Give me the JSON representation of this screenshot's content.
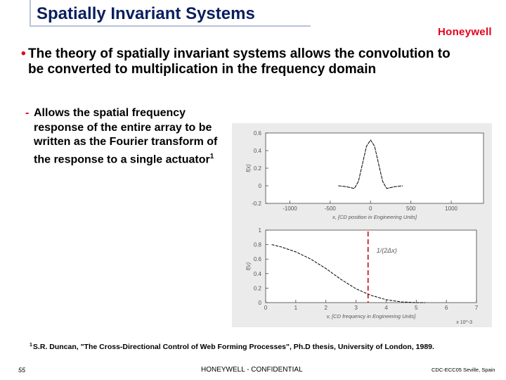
{
  "slide": {
    "title": "Spatially Invariant Systems",
    "logo": "Honeywell",
    "bullet": "The theory of spatially invariant systems allows the convolution to be converted to multiplication in the frequency domain",
    "bullet_marker": "•",
    "sub_bullet_marker": "-",
    "sub_bullet": "Allows the spatial frequency response of the entire array to be written as the Fourier transform of the response to a single actuator",
    "sub_bullet_sup": "1",
    "footnote_marker": "1",
    "footnote": "S.R. Duncan, \"The Cross-Directional Control of Web Forming Processes\", Ph.D thesis, University of London, 1989.",
    "page_number": "55",
    "confidential": "HONEYWELL - CONFIDENTIAL",
    "venue": "CDC-ECC05 Seville, Spain"
  },
  "colors": {
    "title": "#0b1f5e",
    "accent": "#e3001b",
    "cutoff_line": "#cc0000"
  },
  "chart_data": [
    {
      "type": "line",
      "title": "",
      "xlabel": "x, [CD position in Engineering Units]",
      "ylabel": "f(x)",
      "xlim": [
        -1300,
        1400
      ],
      "ylim": [
        -0.2,
        0.6
      ],
      "xticks": [
        "-1000",
        "-500",
        "0",
        "500",
        "1000"
      ],
      "yticks": [
        "0.6",
        "0.4",
        "0.2",
        "0",
        "-0.2"
      ],
      "series": [
        {
          "x": [
            -400,
            -300,
            -200,
            -150,
            -100,
            -50,
            0,
            50,
            100,
            150,
            200,
            300,
            400
          ],
          "y": [
            0.0,
            -0.01,
            -0.03,
            0.05,
            0.25,
            0.45,
            0.52,
            0.45,
            0.25,
            0.05,
            -0.03,
            -0.01,
            0.0
          ]
        }
      ]
    },
    {
      "type": "line",
      "title": "",
      "xlabel": "v, [CD frequency in Engineering Units]",
      "ylabel": "f(v)",
      "x_multiplier": "x 10^-3",
      "xlim": [
        0,
        7
      ],
      "ylim": [
        0,
        1
      ],
      "xticks": [
        "0",
        "1",
        "2",
        "3",
        "4",
        "5",
        "6",
        "7"
      ],
      "yticks": [
        "1",
        "0.8",
        "0.6",
        "0.4",
        "0.2",
        "0"
      ],
      "annotation": "1/(2Δx)",
      "cutoff_x": 3.4,
      "series": [
        {
          "x": [
            0.2,
            0.5,
            1.0,
            1.5,
            2.0,
            2.5,
            3.0,
            3.5,
            4.0,
            4.5,
            5.0,
            5.3
          ],
          "y": [
            0.8,
            0.77,
            0.7,
            0.6,
            0.47,
            0.32,
            0.19,
            0.1,
            0.04,
            0.01,
            0.0,
            0.0
          ]
        }
      ]
    }
  ]
}
